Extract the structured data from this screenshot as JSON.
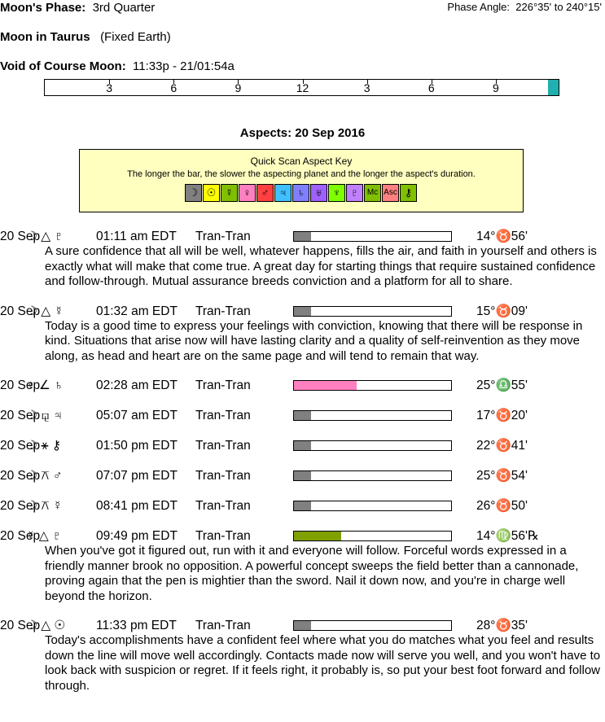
{
  "header": {
    "moon_phase_label": "Moon's Phase:",
    "moon_phase": "3rd Quarter",
    "phase_angle_label": "Phase Angle:",
    "phase_angle": "226°35' to 240°15'",
    "moon_sign": "Moon in Taurus",
    "moon_sign_note": "(Fixed Earth)",
    "void_label": "Void of Course Moon:",
    "void_value": "11:33p - 21/01:54a",
    "timeline_ticks": [
      "3",
      "6",
      "9",
      "12",
      "3",
      "6",
      "9"
    ]
  },
  "aspects_title": "Aspects: 20 Sep 2016",
  "key": {
    "title": "Quick Scan Aspect Key",
    "description": "The longer the bar, the slower the aspecting planet and the longer the aspect's duration.",
    "glyphs": [
      {
        "glyph": "☽",
        "color": "#808080"
      },
      {
        "glyph": "☉",
        "color": "#ffff00"
      },
      {
        "glyph": "☿",
        "color": "#80c000"
      },
      {
        "glyph": "♀",
        "color": "#ff80c0"
      },
      {
        "glyph": "♂",
        "color": "#ff4040"
      },
      {
        "glyph": "♃",
        "color": "#40c0ff"
      },
      {
        "glyph": "♄",
        "color": "#8080ff"
      },
      {
        "glyph": "♅",
        "color": "#a060ff"
      },
      {
        "glyph": "♆",
        "color": "#80ff00"
      },
      {
        "glyph": "♇",
        "color": "#c080ff"
      },
      {
        "glyph": "Mc",
        "color": "#80c000"
      },
      {
        "glyph": "Asc",
        "color": "#ff8080"
      },
      {
        "glyph": "⚷",
        "color": "#80c000"
      }
    ]
  },
  "aspects": [
    {
      "date": "20 Sep",
      "glyphs": "☽ △ ♇",
      "time": "01:11 am EDT",
      "type": "Tran-Tran",
      "bar": {
        "value": 0.11,
        "color": "#808080"
      },
      "position": "14°♉56'",
      "description": "A sure confidence that all will be well, whatever happens, fills the air, and faith in yourself and others is exactly what will make that come true. A great day for starting things that require sustained confidence and follow-through. Mutual assurance breeds conviction and a platform for all to share."
    },
    {
      "date": "20 Sep",
      "glyphs": "☽ △ ☿",
      "time": "01:32 am EDT",
      "type": "Tran-Tran",
      "bar": {
        "value": 0.11,
        "color": "#808080"
      },
      "position": "15°♉09'",
      "description": "Today is a good time to express your feelings with conviction, knowing that there will be response in kind. Situations that arise now will have lasting clarity and a quality of self-reinvention as they move along, as head and heart are on the same page and will tend to remain that way."
    },
    {
      "date": "20 Sep",
      "glyphs": "♀ ∠ ♄",
      "time": "02:28 am EDT",
      "type": "Tran-Tran",
      "bar": {
        "value": 0.4,
        "color": "#ff80c0"
      },
      "position": "25°♎55'"
    },
    {
      "date": "20 Sep",
      "glyphs": "☽ ⚼ ♃",
      "time": "05:07 am EDT",
      "type": "Tran-Tran",
      "bar": {
        "value": 0.11,
        "color": "#808080"
      },
      "position": "17°♉20'"
    },
    {
      "date": "20 Sep",
      "glyphs": "☽ ⚹ ⚷",
      "time": "01:50 pm EDT",
      "type": "Tran-Tran",
      "bar": {
        "value": 0.11,
        "color": "#808080"
      },
      "position": "22°♉41'"
    },
    {
      "date": "20 Sep",
      "glyphs": "☽ ⚻ ♂",
      "time": "07:07 pm EDT",
      "type": "Tran-Tran",
      "bar": {
        "value": 0.11,
        "color": "#808080"
      },
      "position": "25°♉54'"
    },
    {
      "date": "20 Sep",
      "glyphs": "☽ ⚻ ☿",
      "time": "08:41 pm EDT",
      "type": "Tran-Tran",
      "bar": {
        "value": 0.11,
        "color": "#808080"
      },
      "position": "26°♉50'"
    },
    {
      "date": "20 Sep",
      "glyphs": "☿ △ ♇",
      "time": "09:49 pm EDT",
      "type": "Tran-Tran",
      "bar": {
        "value": 0.3,
        "color": "#80a000"
      },
      "position": "14°♍56'℞",
      "description": "When you've got it figured out, run with it and everyone will follow. Forceful words expressed in a friendly manner brook no opposition. A powerful concept sweeps the field better than a cannonade, proving again that the pen is mightier than the sword. Nail it down now, and you're in charge well beyond the horizon."
    },
    {
      "date": "20 Sep",
      "glyphs": "☽ △ ☉",
      "time": "11:33 pm EDT",
      "type": "Tran-Tran",
      "bar": {
        "value": 0.11,
        "color": "#808080"
      },
      "position": "28°♉35'",
      "description": "Today's accomplishments have a confident feel where what you do matches what you feel and results down the line will move well accordingly. Contacts made now will serve you well, and you won't have to look back with suspicion or regret. If it feels right, it probably is, so put your best foot forward and follow through."
    }
  ]
}
